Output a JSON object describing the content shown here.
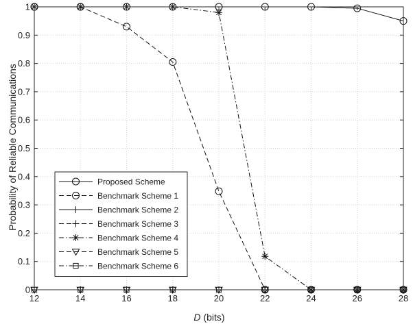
{
  "chart_data": {
    "type": "line",
    "x": [
      12,
      14,
      16,
      18,
      20,
      22,
      24,
      26,
      28
    ],
    "xlim": [
      12,
      28
    ],
    "ylim": [
      0,
      1
    ],
    "xticks": [
      "12",
      "14",
      "16",
      "18",
      "20",
      "22",
      "24",
      "26",
      "28"
    ],
    "yticks": [
      "0",
      "0.1",
      "0.2",
      "0.3",
      "0.4",
      "0.5",
      "0.6",
      "0.7",
      "0.8",
      "0.9",
      "1"
    ],
    "xlabel_var": "D",
    "xlabel_unit": "(bits)",
    "ylabel": "Probability of Reliable Communications",
    "grid": true,
    "legend_position": "lower-left",
    "series": [
      {
        "name": "Proposed Scheme",
        "marker": "circle",
        "dash": "solid",
        "values": [
          1,
          1,
          1,
          1,
          1,
          1,
          1,
          0.995,
          0.95
        ]
      },
      {
        "name": "Benchmark Scheme 1",
        "marker": "circle",
        "dash": "dashed",
        "values": [
          1,
          1,
          0.93,
          0.805,
          0.348,
          0,
          0,
          0,
          0
        ]
      },
      {
        "name": "Benchmark Scheme 2",
        "marker": "plus",
        "dash": "solid",
        "values": [
          0,
          0,
          0,
          0,
          0,
          0,
          0,
          0,
          0
        ]
      },
      {
        "name": "Benchmark Scheme 3",
        "marker": "plus",
        "dash": "dashed",
        "values": [
          0,
          0,
          0,
          0,
          0,
          0,
          0,
          0,
          0
        ]
      },
      {
        "name": "Benchmark Scheme 4",
        "marker": "asterisk",
        "dash": "dashdot",
        "values": [
          1,
          1,
          1,
          1,
          0.98,
          0.118,
          0,
          0,
          0
        ]
      },
      {
        "name": "Benchmark Scheme 5",
        "marker": "triangle-down",
        "dash": "dashed",
        "values": [
          0,
          0,
          0,
          0,
          0,
          0,
          0,
          0,
          0
        ]
      },
      {
        "name": "Benchmark Scheme 6",
        "marker": "square",
        "dash": "dashdot",
        "values": [
          0,
          0,
          0,
          0,
          0,
          0,
          0,
          0,
          0
        ]
      }
    ]
  }
}
